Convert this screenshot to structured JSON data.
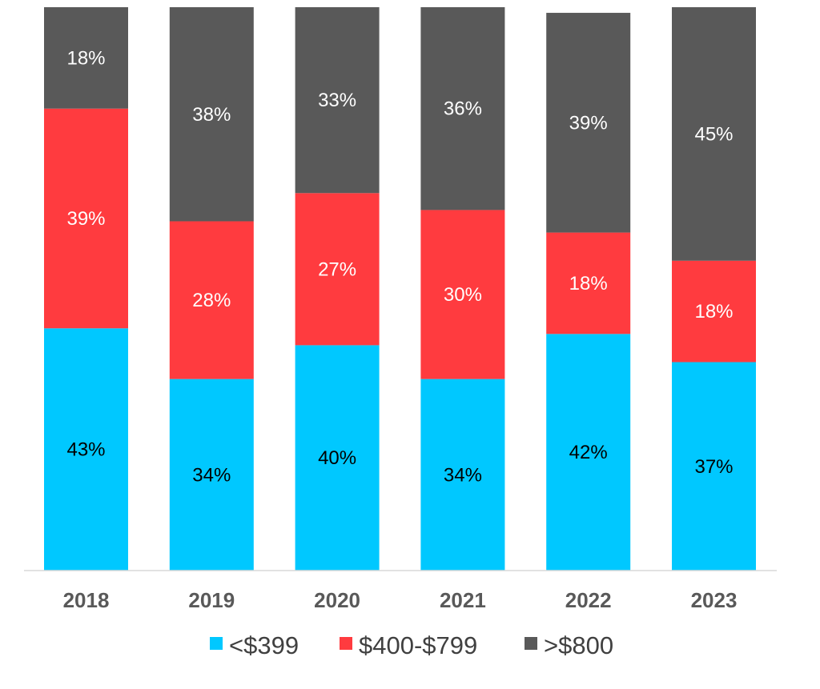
{
  "chart_data": {
    "type": "bar",
    "stacked": true,
    "percent_stacked": true,
    "categories": [
      "2018",
      "2019",
      "2020",
      "2021",
      "2022",
      "2023"
    ],
    "series": [
      {
        "name": "<$399",
        "color": "#00C8FF",
        "label_color": "#000000",
        "values": [
          43,
          34,
          40,
          34,
          42,
          37
        ]
      },
      {
        "name": "$400-$799",
        "color": "#FF3B3F",
        "label_color": "#FFFFFF",
        "values": [
          39,
          28,
          27,
          30,
          18,
          18
        ]
      },
      {
        "name": ">$800",
        "color": "#595959",
        "label_color": "#FFFFFF",
        "values": [
          18,
          38,
          33,
          36,
          39,
          45
        ]
      }
    ],
    "value_suffix": "%",
    "title": "",
    "xlabel": "",
    "ylabel": "",
    "ylim": [
      0,
      100
    ],
    "grid": false,
    "legend_position": "bottom"
  }
}
